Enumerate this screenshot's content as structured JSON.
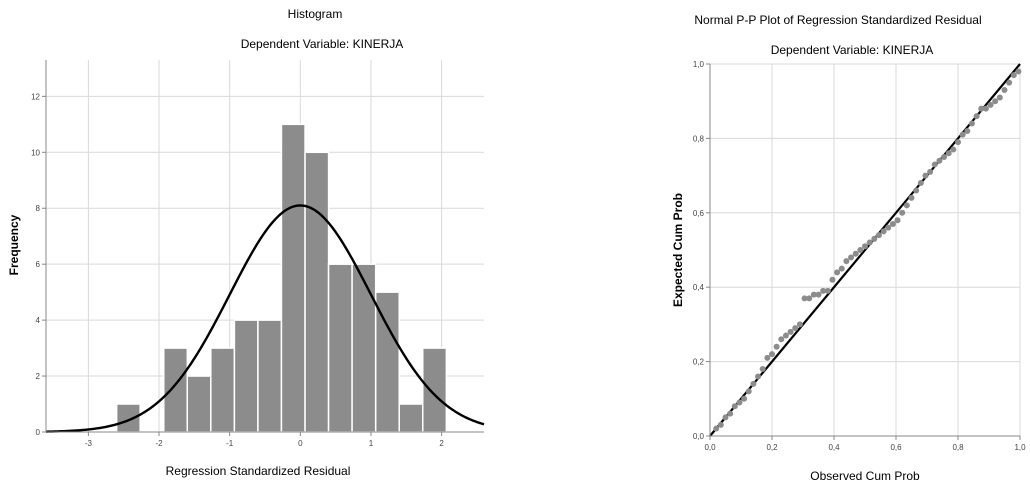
{
  "chart_data": [
    {
      "type": "bar",
      "chart_kind": "histogram",
      "title": "Histogram",
      "subtitle": "Dependent Variable: KINERJA",
      "xlabel": "Regression Standardized Residual",
      "ylabel": "Frequency",
      "xlim": [
        -3.6,
        2.6
      ],
      "ylim": [
        0,
        13.3
      ],
      "x_ticks": [
        -3,
        -2,
        -1,
        0,
        1,
        2
      ],
      "y_ticks": [
        0,
        2,
        4,
        6,
        8,
        10,
        12
      ],
      "grid": true,
      "bin_width": 0.333,
      "bins": [
        {
          "x0": -2.6,
          "x1": -2.267,
          "value": 1
        },
        {
          "x0": -1.933,
          "x1": -1.6,
          "value": 3
        },
        {
          "x0": -1.6,
          "x1": -1.267,
          "value": 2
        },
        {
          "x0": -1.267,
          "x1": -0.933,
          "value": 3
        },
        {
          "x0": -0.933,
          "x1": -0.6,
          "value": 4
        },
        {
          "x0": -0.6,
          "x1": -0.267,
          "value": 4
        },
        {
          "x0": -0.267,
          "x1": 0.067,
          "value": 11
        },
        {
          "x0": 0.067,
          "x1": 0.4,
          "value": 10
        },
        {
          "x0": 0.4,
          "x1": 0.733,
          "value": 6
        },
        {
          "x0": 0.733,
          "x1": 1.067,
          "value": 6
        },
        {
          "x0": 1.067,
          "x1": 1.4,
          "value": 5
        },
        {
          "x0": 1.4,
          "x1": 1.733,
          "value": 1
        },
        {
          "x0": 1.733,
          "x1": 2.067,
          "value": 3
        }
      ],
      "normal_curve": {
        "mean": 0,
        "sd": 1,
        "peak": 8.1
      },
      "colors": {
        "bar_fill": "#8c8c8c",
        "bar_stroke": "#ffffff",
        "curve": "#000000",
        "grid": "#d9d9d9"
      }
    },
    {
      "type": "scatter",
      "chart_kind": "p-p plot",
      "title": "Normal P-P Plot of Regression Standardized Residual",
      "subtitle": "Dependent Variable: KINERJA",
      "xlabel": "Observed Cum Prob",
      "ylabel": "Expected Cum Prob",
      "xlim": [
        0,
        1
      ],
      "ylim": [
        0,
        1
      ],
      "x_ticks": [
        "0,0",
        "0,2",
        "0,4",
        "0,6",
        "0,8",
        "1,0"
      ],
      "y_ticks": [
        "0,0",
        "0,2",
        "0,4",
        "0,6",
        "0,8",
        "1,0"
      ],
      "grid": true,
      "reference_line": [
        [
          0,
          0
        ],
        [
          1,
          1
        ]
      ],
      "points": [
        [
          0.02,
          0.02
        ],
        [
          0.035,
          0.03
        ],
        [
          0.05,
          0.05
        ],
        [
          0.065,
          0.06
        ],
        [
          0.08,
          0.08
        ],
        [
          0.095,
          0.09
        ],
        [
          0.11,
          0.1
        ],
        [
          0.125,
          0.12
        ],
        [
          0.14,
          0.14
        ],
        [
          0.155,
          0.16
        ],
        [
          0.17,
          0.18
        ],
        [
          0.185,
          0.21
        ],
        [
          0.2,
          0.22
        ],
        [
          0.215,
          0.24
        ],
        [
          0.23,
          0.26
        ],
        [
          0.245,
          0.27
        ],
        [
          0.26,
          0.28
        ],
        [
          0.275,
          0.29
        ],
        [
          0.29,
          0.3
        ],
        [
          0.305,
          0.37
        ],
        [
          0.32,
          0.37
        ],
        [
          0.335,
          0.38
        ],
        [
          0.35,
          0.38
        ],
        [
          0.365,
          0.39
        ],
        [
          0.38,
          0.39
        ],
        [
          0.395,
          0.42
        ],
        [
          0.41,
          0.44
        ],
        [
          0.425,
          0.45
        ],
        [
          0.44,
          0.47
        ],
        [
          0.455,
          0.48
        ],
        [
          0.47,
          0.49
        ],
        [
          0.485,
          0.5
        ],
        [
          0.5,
          0.51
        ],
        [
          0.515,
          0.52
        ],
        [
          0.53,
          0.53
        ],
        [
          0.545,
          0.54
        ],
        [
          0.56,
          0.55
        ],
        [
          0.575,
          0.56
        ],
        [
          0.59,
          0.57
        ],
        [
          0.605,
          0.58
        ],
        [
          0.62,
          0.6
        ],
        [
          0.635,
          0.62
        ],
        [
          0.65,
          0.64
        ],
        [
          0.665,
          0.66
        ],
        [
          0.68,
          0.68
        ],
        [
          0.695,
          0.7
        ],
        [
          0.71,
          0.71
        ],
        [
          0.725,
          0.73
        ],
        [
          0.74,
          0.74
        ],
        [
          0.755,
          0.75
        ],
        [
          0.77,
          0.76
        ],
        [
          0.785,
          0.77
        ],
        [
          0.8,
          0.79
        ],
        [
          0.815,
          0.81
        ],
        [
          0.83,
          0.82
        ],
        [
          0.845,
          0.84
        ],
        [
          0.86,
          0.86
        ],
        [
          0.875,
          0.88
        ],
        [
          0.89,
          0.88
        ],
        [
          0.905,
          0.89
        ],
        [
          0.92,
          0.9
        ],
        [
          0.935,
          0.91
        ],
        [
          0.95,
          0.93
        ],
        [
          0.965,
          0.95
        ],
        [
          0.98,
          0.97
        ],
        [
          0.995,
          0.98
        ]
      ],
      "colors": {
        "point": "#8c8c8c",
        "line": "#000000",
        "grid": "#d9d9d9"
      }
    }
  ]
}
